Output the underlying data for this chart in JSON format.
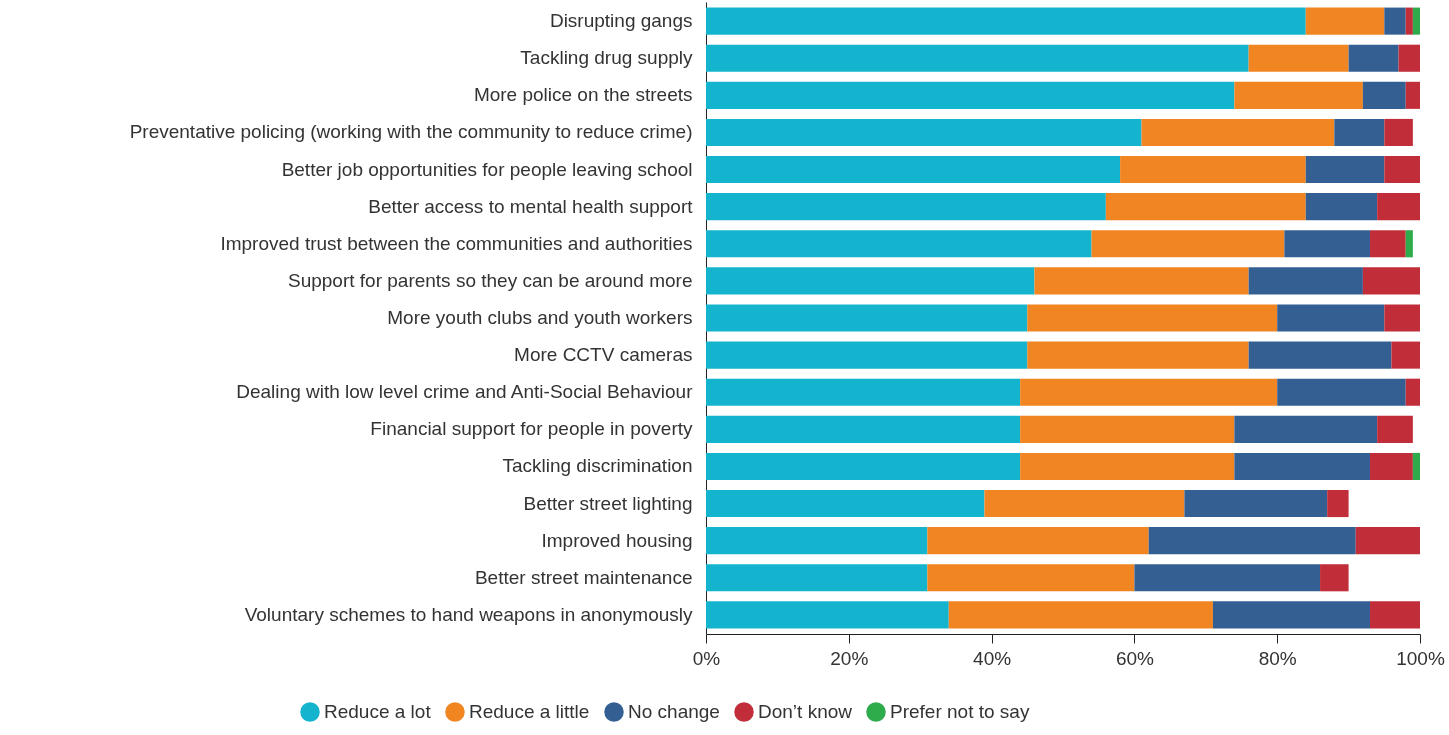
{
  "chart_data": {
    "type": "bar",
    "orientation": "horizontal",
    "stacked": true,
    "categories": [
      "Disrupting gangs",
      "Tackling drug supply",
      "More police on the streets",
      "Preventative policing (working with the community to reduce crime)",
      "Better job opportunities for people leaving school",
      "Better access to mental health support",
      "Improved trust between the communities and authorities",
      "Support for parents so they can be around more",
      "More youth clubs and youth workers",
      "More CCTV cameras",
      "Dealing with low level crime and Anti-Social Behaviour",
      "Financial support for people in poverty",
      "Tackling discrimination",
      "Better street lighting",
      "Improved housing",
      "Better street maintenance",
      "Voluntary schemes to hand weapons in anonymously"
    ],
    "series": [
      {
        "name": "Reduce a lot",
        "color": "#14b3ce",
        "values": [
          84,
          76,
          74,
          61,
          58,
          56,
          54,
          46,
          45,
          45,
          44,
          44,
          44,
          39,
          31,
          31,
          34
        ]
      },
      {
        "name": "Reduce a little",
        "color": "#f08522",
        "values": [
          11,
          14,
          18,
          27,
          26,
          28,
          27,
          30,
          35,
          31,
          36,
          30,
          30,
          28,
          31,
          29,
          37
        ]
      },
      {
        "name": "No change",
        "color": "#345f93",
        "values": [
          3,
          7,
          6,
          7,
          11,
          10,
          12,
          16,
          15,
          20,
          18,
          20,
          19,
          20,
          29,
          26,
          22
        ]
      },
      {
        "name": "Don’t know",
        "color": "#c12e3a",
        "values": [
          1,
          3,
          2,
          4,
          5,
          6,
          5,
          8,
          5,
          4,
          2,
          5,
          6,
          3,
          9,
          4,
          7
        ]
      },
      {
        "name": "Prefer not to say",
        "color": "#2eab4a",
        "values": [
          1,
          0,
          0,
          0,
          0,
          0,
          1,
          0,
          0,
          0,
          0,
          0,
          1,
          0,
          0,
          0,
          0
        ]
      }
    ],
    "xlim": [
      0,
      100
    ],
    "xticks": [
      {
        "value": 0,
        "label": "0%"
      },
      {
        "value": 20,
        "label": "20%"
      },
      {
        "value": 40,
        "label": "40%"
      },
      {
        "value": 60,
        "label": "60%"
      },
      {
        "value": 80,
        "label": "80%"
      },
      {
        "value": 100,
        "label": "100%"
      }
    ],
    "grid": false,
    "legend": "bottom"
  }
}
